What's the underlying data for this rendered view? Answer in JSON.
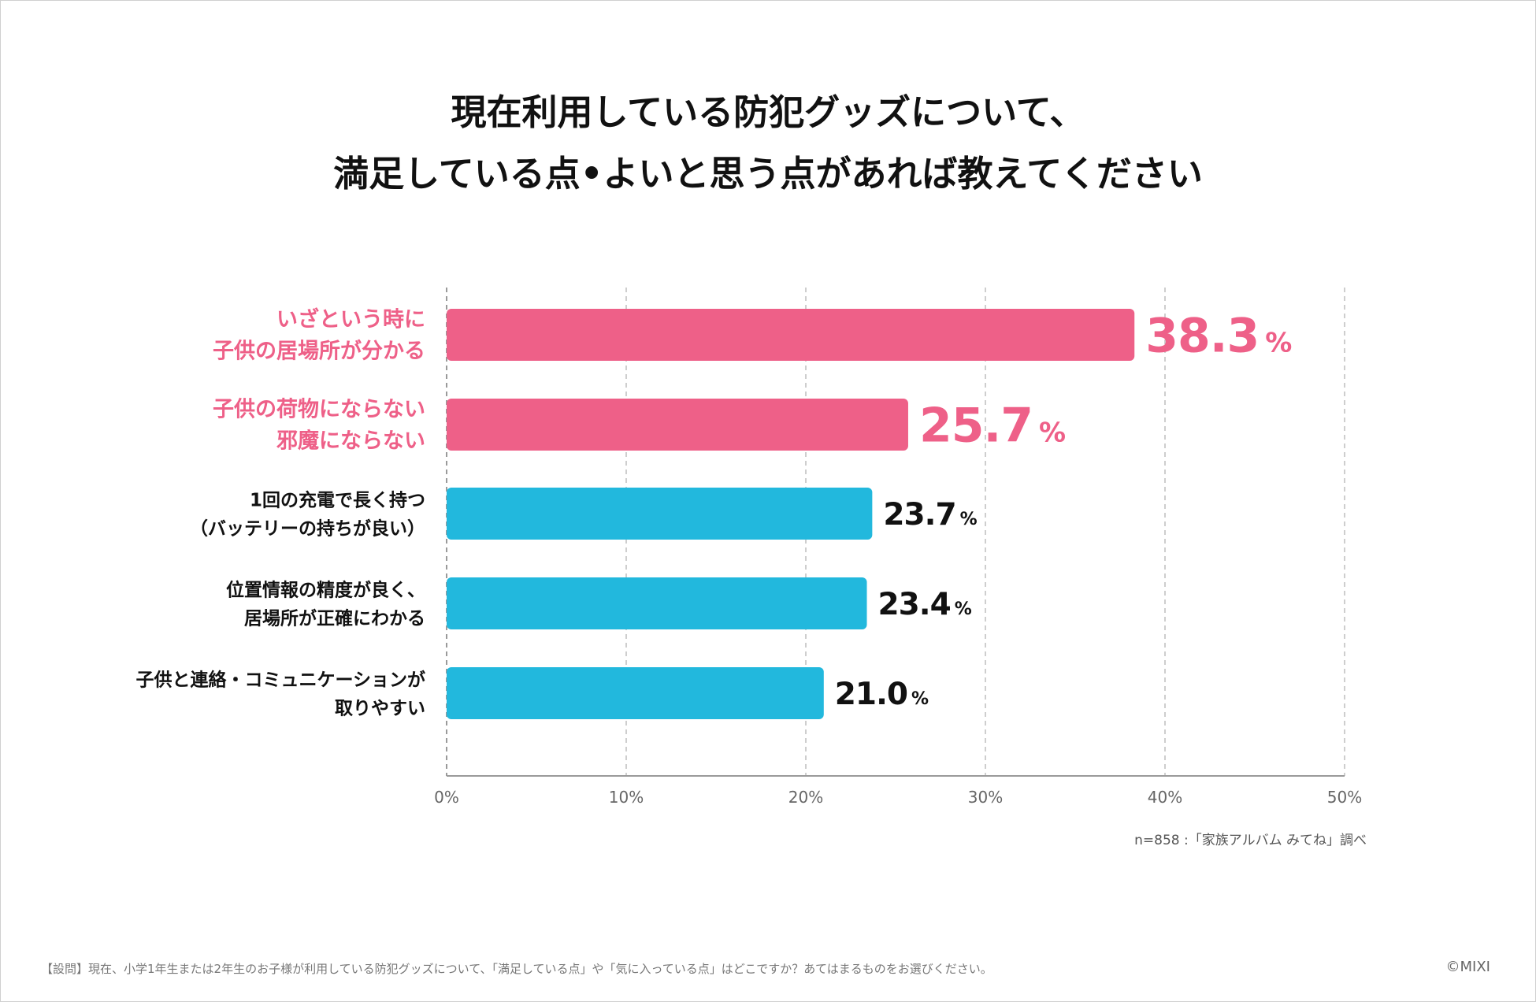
{
  "title_line1": "現在利用している防犯グッズについて、",
  "title_line2": "満足している点•よいと思う点があれば教えてください",
  "chart_data": {
    "type": "bar",
    "orientation": "horizontal",
    "categories": [
      [
        "いざという時に",
        "子供の居場所が分かる"
      ],
      [
        "子供の荷物にならない",
        "邪魔にならない"
      ],
      [
        "1回の充電で長く持つ",
        "（バッテリーの持ちが良い）"
      ],
      [
        "位置情報の精度が良く、",
        "居場所が正確にわかる"
      ],
      [
        "子供と連絡・コミュニケーションが",
        "取りやすい"
      ]
    ],
    "values": [
      38.3,
      25.7,
      23.7,
      23.4,
      21.0
    ],
    "value_labels": [
      "38.3",
      "25.7",
      "23.7",
      "23.4",
      "21.0"
    ],
    "unit": "%",
    "highlight": [
      true,
      true,
      false,
      false,
      false
    ],
    "xlim": [
      0,
      50
    ],
    "xticks": [
      0,
      10,
      20,
      30,
      40,
      50
    ],
    "xtick_labels": [
      "0%",
      "10%",
      "20%",
      "30%",
      "40%",
      "50%"
    ],
    "grid": "vertical-dashed",
    "colors": {
      "highlight": "#EE6088",
      "normal": "#22B8DD"
    }
  },
  "source_note": "n=858 :「家族アルバム みてね」調べ",
  "footer_note": "【設問】現在、小学1年生または2年生のお子様が利用している防犯グッズについて、「満足している点」や「気に入っている点」はどこですか？あてはまるものをお選びください。",
  "copyright": "©MIXI"
}
